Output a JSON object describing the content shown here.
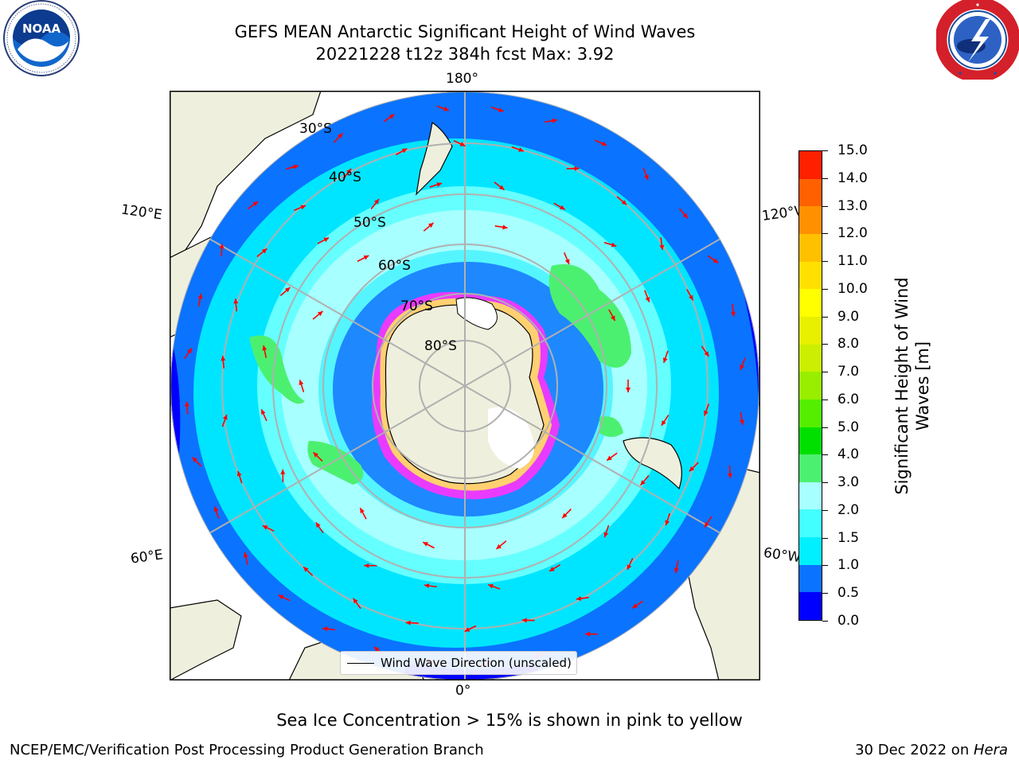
{
  "header": {
    "title_line1": "GEFS MEAN Antarctic Significant Height of Wind Waves",
    "title_line2": "20221228 t12z 384h fcst   Max: 3.92"
  },
  "logos": {
    "left_icon": "noaa-logo",
    "left_text": "NOAA",
    "left_ring_text": "NATIONAL OCEANIC AND ATMOSPHERIC ADMINISTRATION · U.S. DEPARTMENT OF COMMERCE",
    "right_icon": "national-weather-service-logo",
    "right_ring_text": "NATIONAL WEATHER SERVICE"
  },
  "map": {
    "projection": "south-polar-stereographic",
    "longitude_labels": {
      "top": "180°",
      "bottom": "0°",
      "left_upper": "120°E",
      "left_lower": "60°E",
      "right_upper": "120°W",
      "right_lower": "60°W"
    },
    "latitude_labels": [
      "30°S",
      "40°S",
      "50°S",
      "60°S",
      "70°S",
      "80°S"
    ],
    "max_value": 3.92,
    "colors": {
      "ocean_low": "#0000ff",
      "ocean_mid": "#0a73ff",
      "ocean_high": "#00e5ff",
      "ocean_peak": "#a0ffff",
      "green_patch": "#4cf070",
      "land": "#efefdd",
      "arrow": "#ff0000",
      "ice_edge": "#ff33ff"
    }
  },
  "legend": {
    "label": "Wind Wave Direction (unscaled)"
  },
  "colorbar": {
    "title_line1": "Significant Height of Wind",
    "title_line2": "Waves [m]",
    "ticks": [
      "15.0",
      "14.0",
      "13.0",
      "12.0",
      "11.0",
      "10.0",
      "9.0",
      "8.0",
      "7.0",
      "6.0",
      "5.0",
      "4.0",
      "3.0",
      "2.0",
      "1.5",
      "1.0",
      "0.5",
      "0.0"
    ],
    "colors_bottom_to_top": [
      "#0000ff",
      "#0a73ff",
      "#00f0ff",
      "#44ffff",
      "#a8ffff",
      "#4cf070",
      "#00e000",
      "#55ee00",
      "#99ee00",
      "#ccee00",
      "#e8f000",
      "#ffff00",
      "#ffe000",
      "#ffc000",
      "#ff9000",
      "#ff6000",
      "#ff2000"
    ]
  },
  "note": "Sea Ice Concentration > 15% is shown in pink to yellow",
  "footer": {
    "left": "NCEP/EMC/Verification Post Processing Product Generation Branch",
    "right_prefix": "30 Dec 2022 on ",
    "right_machine": "Hera"
  }
}
